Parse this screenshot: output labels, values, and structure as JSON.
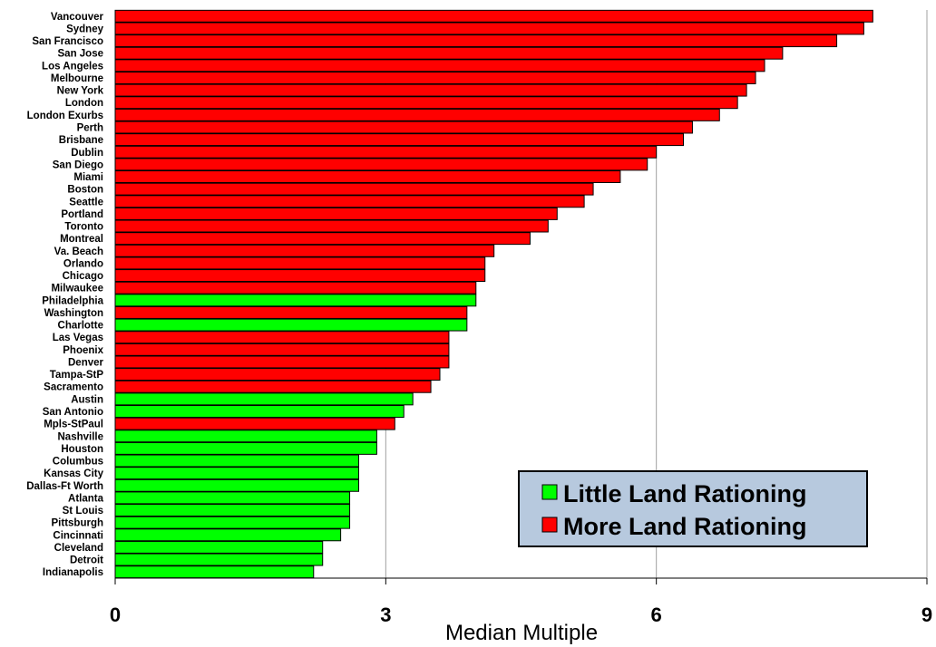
{
  "chart_data": {
    "type": "bar",
    "orientation": "horizontal",
    "categories": [
      "Vancouver",
      "Sydney",
      "San Francisco",
      "San Jose",
      "Los Angeles",
      "Melbourne",
      "New York",
      "London",
      "London Exurbs",
      "Perth",
      "Brisbane",
      "Dublin",
      "San Diego",
      "Miami",
      "Boston",
      "Seattle",
      "Portland",
      "Toronto",
      "Montreal",
      "Va. Beach",
      "Orlando",
      "Chicago",
      "Milwaukee",
      "Philadelphia",
      "Washington",
      "Charlotte",
      "Las Vegas",
      "Phoenix",
      "Denver",
      "Tampa-StP",
      "Sacramento",
      "Austin",
      "San Antonio",
      "Mpls-StPaul",
      "Nashville",
      "Houston",
      "Columbus",
      "Kansas City",
      "Dallas-Ft Worth",
      "Atlanta",
      "St Louis",
      "Pittsburgh",
      "Cincinnati",
      "Cleveland",
      "Detroit",
      "Indianapolis"
    ],
    "values": [
      8.4,
      8.3,
      8.0,
      7.4,
      7.2,
      7.1,
      7.0,
      6.9,
      6.7,
      6.4,
      6.3,
      6.0,
      5.9,
      5.6,
      5.3,
      5.2,
      4.9,
      4.8,
      4.6,
      4.2,
      4.1,
      4.1,
      4.0,
      4.0,
      3.9,
      3.9,
      3.7,
      3.7,
      3.7,
      3.6,
      3.5,
      3.3,
      3.2,
      3.1,
      2.9,
      2.9,
      2.7,
      2.7,
      2.7,
      2.6,
      2.6,
      2.6,
      2.5,
      2.3,
      2.3,
      2.2
    ],
    "groups": [
      "more",
      "more",
      "more",
      "more",
      "more",
      "more",
      "more",
      "more",
      "more",
      "more",
      "more",
      "more",
      "more",
      "more",
      "more",
      "more",
      "more",
      "more",
      "more",
      "more",
      "more",
      "more",
      "more",
      "little",
      "more",
      "little",
      "more",
      "more",
      "more",
      "more",
      "more",
      "little",
      "little",
      "more",
      "little",
      "little",
      "little",
      "little",
      "little",
      "little",
      "little",
      "little",
      "little",
      "little",
      "little",
      "little"
    ],
    "xlabel": "Median Multiple",
    "xlim": [
      0,
      9
    ],
    "xticks": [
      "0",
      "3",
      "6",
      "9"
    ],
    "xtick_values": [
      0,
      3,
      6,
      9
    ],
    "grid": "vertical",
    "legend": {
      "placement": "bottom-right",
      "items": [
        {
          "key": "little",
          "label": "Little Land Rationing",
          "color": "#00ff00"
        },
        {
          "key": "more",
          "label": "More Land Rationing",
          "color": "#ff0000"
        }
      ],
      "background": "#b7c9de"
    }
  }
}
